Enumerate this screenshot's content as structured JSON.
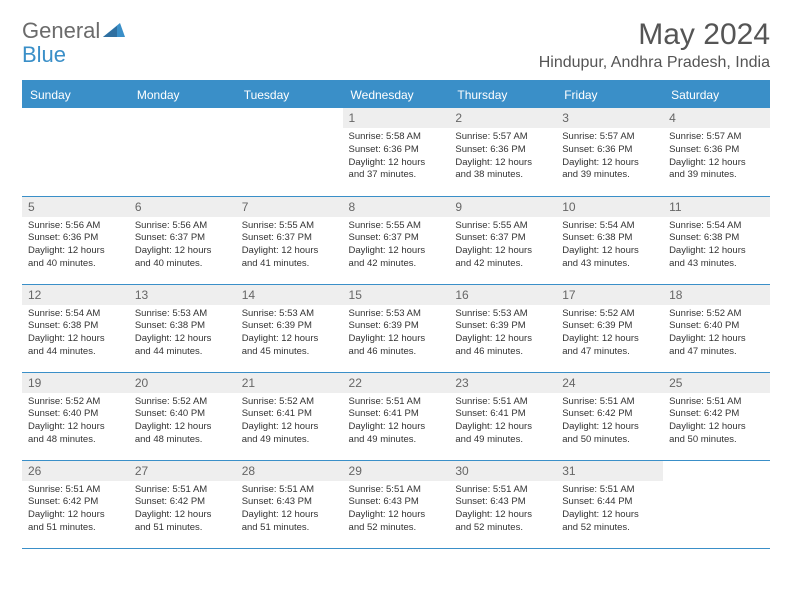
{
  "header": {
    "logo_part1": "General",
    "logo_part2": "Blue",
    "month_title": "May 2024",
    "location": "Hindupur, Andhra Pradesh, India"
  },
  "colors": {
    "header_bg": "#3a8fc8",
    "header_text": "#ffffff",
    "daynum_bg": "#eeeeee",
    "daynum_text": "#666666",
    "border": "#3a8fc8",
    "logo_gray": "#6b6b6b",
    "logo_blue": "#3a8fc8",
    "title_color": "#555555",
    "body_text": "#333333"
  },
  "day_headers": [
    "Sunday",
    "Monday",
    "Tuesday",
    "Wednesday",
    "Thursday",
    "Friday",
    "Saturday"
  ],
  "weeks": [
    [
      null,
      null,
      null,
      {
        "n": "1",
        "sr": "5:58 AM",
        "ss": "6:36 PM",
        "dl": "12 hours and 37 minutes."
      },
      {
        "n": "2",
        "sr": "5:57 AM",
        "ss": "6:36 PM",
        "dl": "12 hours and 38 minutes."
      },
      {
        "n": "3",
        "sr": "5:57 AM",
        "ss": "6:36 PM",
        "dl": "12 hours and 39 minutes."
      },
      {
        "n": "4",
        "sr": "5:57 AM",
        "ss": "6:36 PM",
        "dl": "12 hours and 39 minutes."
      }
    ],
    [
      {
        "n": "5",
        "sr": "5:56 AM",
        "ss": "6:36 PM",
        "dl": "12 hours and 40 minutes."
      },
      {
        "n": "6",
        "sr": "5:56 AM",
        "ss": "6:37 PM",
        "dl": "12 hours and 40 minutes."
      },
      {
        "n": "7",
        "sr": "5:55 AM",
        "ss": "6:37 PM",
        "dl": "12 hours and 41 minutes."
      },
      {
        "n": "8",
        "sr": "5:55 AM",
        "ss": "6:37 PM",
        "dl": "12 hours and 42 minutes."
      },
      {
        "n": "9",
        "sr": "5:55 AM",
        "ss": "6:37 PM",
        "dl": "12 hours and 42 minutes."
      },
      {
        "n": "10",
        "sr": "5:54 AM",
        "ss": "6:38 PM",
        "dl": "12 hours and 43 minutes."
      },
      {
        "n": "11",
        "sr": "5:54 AM",
        "ss": "6:38 PM",
        "dl": "12 hours and 43 minutes."
      }
    ],
    [
      {
        "n": "12",
        "sr": "5:54 AM",
        "ss": "6:38 PM",
        "dl": "12 hours and 44 minutes."
      },
      {
        "n": "13",
        "sr": "5:53 AM",
        "ss": "6:38 PM",
        "dl": "12 hours and 44 minutes."
      },
      {
        "n": "14",
        "sr": "5:53 AM",
        "ss": "6:39 PM",
        "dl": "12 hours and 45 minutes."
      },
      {
        "n": "15",
        "sr": "5:53 AM",
        "ss": "6:39 PM",
        "dl": "12 hours and 46 minutes."
      },
      {
        "n": "16",
        "sr": "5:53 AM",
        "ss": "6:39 PM",
        "dl": "12 hours and 46 minutes."
      },
      {
        "n": "17",
        "sr": "5:52 AM",
        "ss": "6:39 PM",
        "dl": "12 hours and 47 minutes."
      },
      {
        "n": "18",
        "sr": "5:52 AM",
        "ss": "6:40 PM",
        "dl": "12 hours and 47 minutes."
      }
    ],
    [
      {
        "n": "19",
        "sr": "5:52 AM",
        "ss": "6:40 PM",
        "dl": "12 hours and 48 minutes."
      },
      {
        "n": "20",
        "sr": "5:52 AM",
        "ss": "6:40 PM",
        "dl": "12 hours and 48 minutes."
      },
      {
        "n": "21",
        "sr": "5:52 AM",
        "ss": "6:41 PM",
        "dl": "12 hours and 49 minutes."
      },
      {
        "n": "22",
        "sr": "5:51 AM",
        "ss": "6:41 PM",
        "dl": "12 hours and 49 minutes."
      },
      {
        "n": "23",
        "sr": "5:51 AM",
        "ss": "6:41 PM",
        "dl": "12 hours and 49 minutes."
      },
      {
        "n": "24",
        "sr": "5:51 AM",
        "ss": "6:42 PM",
        "dl": "12 hours and 50 minutes."
      },
      {
        "n": "25",
        "sr": "5:51 AM",
        "ss": "6:42 PM",
        "dl": "12 hours and 50 minutes."
      }
    ],
    [
      {
        "n": "26",
        "sr": "5:51 AM",
        "ss": "6:42 PM",
        "dl": "12 hours and 51 minutes."
      },
      {
        "n": "27",
        "sr": "5:51 AM",
        "ss": "6:42 PM",
        "dl": "12 hours and 51 minutes."
      },
      {
        "n": "28",
        "sr": "5:51 AM",
        "ss": "6:43 PM",
        "dl": "12 hours and 51 minutes."
      },
      {
        "n": "29",
        "sr": "5:51 AM",
        "ss": "6:43 PM",
        "dl": "12 hours and 52 minutes."
      },
      {
        "n": "30",
        "sr": "5:51 AM",
        "ss": "6:43 PM",
        "dl": "12 hours and 52 minutes."
      },
      {
        "n": "31",
        "sr": "5:51 AM",
        "ss": "6:44 PM",
        "dl": "12 hours and 52 minutes."
      },
      null
    ]
  ],
  "labels": {
    "sunrise": "Sunrise:",
    "sunset": "Sunset:",
    "daylight": "Daylight:"
  }
}
